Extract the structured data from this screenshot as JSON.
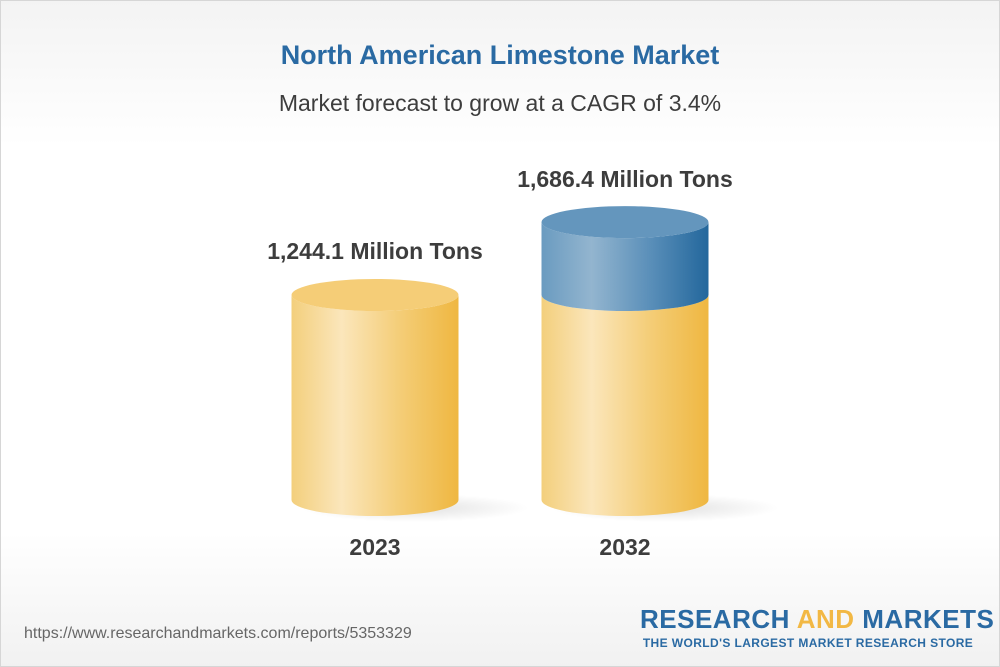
{
  "title": "North American Limestone Market",
  "subtitle": "Market forecast to grow at a CAGR of 3.4%",
  "chart_data": {
    "type": "bar",
    "style": "3d-cylinder",
    "categories": [
      "2023",
      "2032"
    ],
    "values": [
      1244.1,
      1686.4
    ],
    "data_labels": [
      "1,244.1 Million Tons",
      "1,686.4 Million Tons"
    ],
    "unit": "Million Tons",
    "grid": false,
    "colors": {
      "base": "#f2b844",
      "growth": "#2a6aa3"
    }
  },
  "footer": {
    "url": "https://www.researchandmarkets.com/reports/5353329",
    "logo_part1": "RESEARCH",
    "logo_part2": "AND",
    "logo_part3": "MARKETS",
    "tagline": "THE WORLD'S LARGEST MARKET RESEARCH STORE"
  }
}
